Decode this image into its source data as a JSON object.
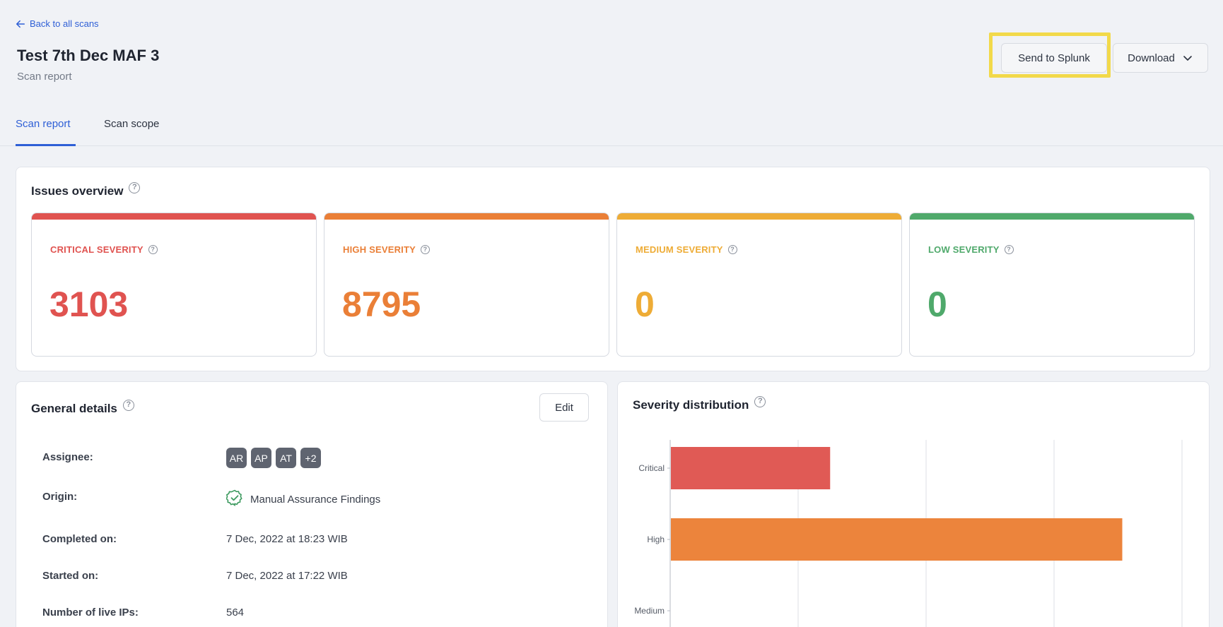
{
  "header": {
    "back_label": "Back to all scans",
    "title": "Test 7th Dec MAF 3",
    "subtitle": "Scan report",
    "send_label": "Send to Splunk",
    "download_label": "Download"
  },
  "tabs": [
    {
      "label": "Scan report",
      "active": true
    },
    {
      "label": "Scan scope",
      "active": false
    }
  ],
  "issues": {
    "title": "Issues overview",
    "cards": [
      {
        "label": "CRITICAL SEVERITY",
        "value": "3103",
        "color": "#e05350"
      },
      {
        "label": "HIGH SEVERITY",
        "value": "8795",
        "color": "#ea7f37"
      },
      {
        "label": "MEDIUM SEVERITY",
        "value": "0",
        "color": "#eeac36"
      },
      {
        "label": "LOW SEVERITY",
        "value": "0",
        "color": "#4fa96b"
      }
    ]
  },
  "general": {
    "title": "General details",
    "edit_label": "Edit",
    "assignee_label": "Assignee:",
    "assignees": [
      "AR",
      "AP",
      "AT",
      "+2"
    ],
    "origin_label": "Origin:",
    "origin_value": "Manual Assurance Findings",
    "completed_label": "Completed on:",
    "completed_value": "7 Dec, 2022 at 18:23 WIB",
    "started_label": "Started on:",
    "started_value": "7 Dec, 2022 at 17:22 WIB",
    "live_ips_label": "Number of live IPs:",
    "live_ips_value": "564"
  },
  "distribution": {
    "title": "Severity distribution"
  },
  "chart_data": {
    "type": "bar",
    "orientation": "horizontal",
    "categories": [
      "Critical",
      "High",
      "Medium"
    ],
    "values": [
      3103,
      8795,
      0
    ],
    "colors": [
      "#e05a55",
      "#ec843c",
      "#eeac36"
    ],
    "xlim": [
      0,
      10000
    ],
    "grid": true
  }
}
